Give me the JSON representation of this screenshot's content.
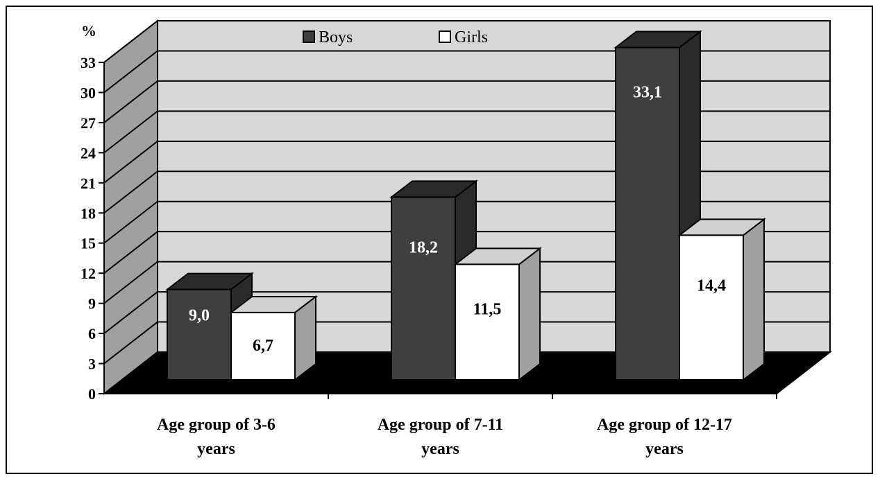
{
  "chart_data": {
    "type": "bar",
    "ylabel": "%",
    "ylim": [
      0,
      33
    ],
    "yticks": [
      "0",
      "3",
      "6",
      "9",
      "12",
      "15",
      "18",
      "21",
      "24",
      "27",
      "30",
      "33"
    ],
    "categories": [
      [
        "Age group of 3-6",
        "years"
      ],
      [
        "Age group of 7-11",
        "years"
      ],
      [
        "Age group of 12-17",
        "years"
      ]
    ],
    "series": [
      {
        "name": "Boys",
        "values": [
          9.0,
          18.2,
          33.1
        ],
        "labels": [
          "9,0",
          "18,2",
          "33,1"
        ],
        "color": "#3f3f3f"
      },
      {
        "name": "Girls",
        "values": [
          6.7,
          11.5,
          14.4
        ],
        "labels": [
          "6,7",
          "11,5",
          "14,4"
        ],
        "color": "#ffffff"
      }
    ],
    "grid": true,
    "legend": "top-center",
    "colors": {
      "wall": "#d8d8d8",
      "side_wall": "#a0a0a0",
      "floor": "#000000"
    }
  }
}
